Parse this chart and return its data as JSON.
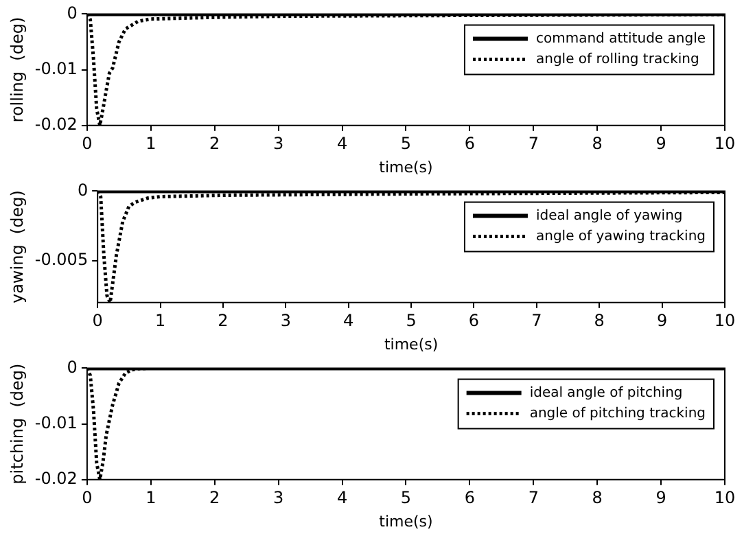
{
  "chart_data": [
    {
      "type": "line",
      "xlabel": "time(s)",
      "ylabel": "rolling  (deg)",
      "xlim": [
        0,
        10
      ],
      "xticks": [
        0,
        1,
        2,
        3,
        4,
        5,
        6,
        7,
        8,
        9,
        10
      ],
      "ylim": [
        -0.02,
        0
      ],
      "yticks": [
        -0.02,
        -0.01,
        0
      ],
      "legend": "top right",
      "marker": "none",
      "grid": false,
      "series": [
        {
          "name": "command attitude angle",
          "color": "#000000",
          "line_style": "solid",
          "x": [
            0,
            10
          ],
          "values": [
            0,
            0
          ]
        },
        {
          "name": "angle of rolling tracking",
          "color": "#000000",
          "line_style": "dotted",
          "x": [
            0,
            0.05,
            0.1,
            0.15,
            0.2,
            0.25,
            0.3,
            0.35,
            0.4,
            0.5,
            0.6,
            0.8,
            1,
            2,
            3,
            5,
            10
          ],
          "values": [
            0,
            -0.001,
            -0.008,
            -0.017,
            -0.02,
            -0.017,
            -0.0137,
            -0.0106,
            -0.0097,
            -0.005,
            -0.0027,
            -0.0013,
            -0.0009,
            -0.0006,
            -0.0004,
            -0.0003,
            -0.0001
          ]
        }
      ]
    },
    {
      "type": "line",
      "xlabel": "time(s)",
      "ylabel": "yawing  (deg)",
      "xlim": [
        0,
        10
      ],
      "xticks": [
        0,
        1,
        2,
        3,
        4,
        5,
        6,
        7,
        8,
        9,
        10
      ],
      "ylim": [
        -0.008,
        0
      ],
      "yticks": [
        -0.005,
        0
      ],
      "legend": "top right",
      "marker": "none",
      "grid": false,
      "series": [
        {
          "name": "ideal angle of yawing",
          "color": "#000000",
          "line_style": "solid",
          "x": [
            0,
            10
          ],
          "values": [
            0,
            0
          ]
        },
        {
          "name": "angle of yawing tracking",
          "color": "#000000",
          "line_style": "dotted",
          "x": [
            0,
            0.05,
            0.1,
            0.15,
            0.2,
            0.25,
            0.3,
            0.4,
            0.5,
            0.6,
            0.8,
            1,
            2,
            5,
            10
          ],
          "values": [
            0,
            -0.0004,
            -0.0046,
            -0.0075,
            -0.008,
            -0.0063,
            -0.0046,
            -0.0022,
            -0.0011,
            -0.0008,
            -0.0005,
            -0.0004,
            -0.0003,
            -0.0002,
            -0.0001
          ]
        }
      ]
    },
    {
      "type": "line",
      "xlabel": "time(s)",
      "ylabel": "pitching  (deg)",
      "xlim": [
        0,
        10
      ],
      "xticks": [
        0,
        1,
        2,
        3,
        4,
        5,
        6,
        7,
        8,
        9,
        10
      ],
      "ylim": [
        -0.02,
        0
      ],
      "yticks": [
        -0.02,
        -0.01,
        0
      ],
      "legend": "top right",
      "marker": "none",
      "grid": false,
      "series": [
        {
          "name": "ideal angle of pitching",
          "color": "#000000",
          "line_style": "solid",
          "x": [
            0,
            10
          ],
          "values": [
            0,
            0
          ]
        },
        {
          "name": "angle of pitching tracking",
          "color": "#000000",
          "line_style": "dotted",
          "x": [
            0,
            0.05,
            0.1,
            0.15,
            0.2,
            0.25,
            0.3,
            0.4,
            0.5,
            0.6,
            0.7,
            0.8,
            1,
            10
          ],
          "values": [
            0,
            -0.0013,
            -0.0075,
            -0.017,
            -0.02,
            -0.0168,
            -0.012,
            -0.0066,
            -0.0027,
            -0.0009,
            -0.0003,
            -0.0001,
            0,
            0
          ]
        }
      ]
    }
  ]
}
